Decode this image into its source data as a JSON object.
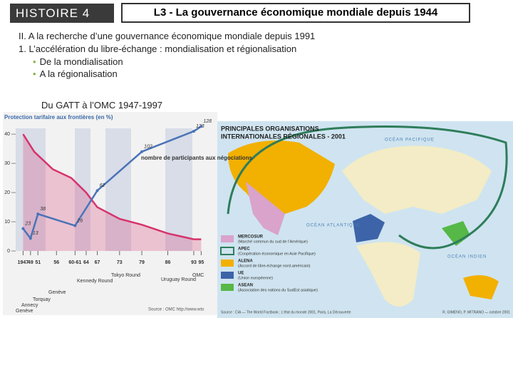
{
  "header": {
    "course": "HISTOIRE 4",
    "title": "L3 - La gouvernance économique mondiale depuis 1944"
  },
  "body": {
    "lines": [
      "II. A la recherche d’une gouvernance économique mondiale depuis 1991",
      "1. L’accélération du libre-échange : mondialisation et régionalisation"
    ],
    "bullets": [
      "De la mondialisation",
      "A la régionalisation"
    ],
    "caption": "Du GATT à l’OMC 1947-1997"
  },
  "chart_data": {
    "type": "line",
    "title": "Protection tarifaire aux frontières (en %)",
    "xlim": [
      1945,
      1998
    ],
    "ylim": [
      0,
      42
    ],
    "yticks": [
      0,
      10,
      20,
      30,
      40
    ],
    "y2lim": [
      0,
      126
    ],
    "xticks": [
      1947,
      {
        "value": 1949,
        "label": "49"
      },
      {
        "value": 1951,
        "label": "51"
      },
      {
        "value": 1956,
        "label": "56"
      },
      {
        "value": 1961,
        "label": "60-61"
      },
      {
        "value": 1964,
        "label": "64"
      },
      {
        "value": 1967,
        "label": "67"
      },
      {
        "value": 1973,
        "label": "73"
      },
      {
        "value": 1979,
        "label": "79"
      },
      {
        "value": 1986,
        "label": "86"
      },
      {
        "value": 1993,
        "label": "93"
      },
      {
        "value": 1995,
        "label": "95"
      }
    ],
    "series": [
      {
        "color": "#d6336c",
        "x": [
          1947,
          1950,
          1955,
          1960,
          1964,
          1967,
          1973,
          1979,
          1986,
          1993,
          1995
        ],
        "values": [
          40,
          34,
          28,
          25,
          20,
          15,
          11,
          9,
          6,
          4,
          4
        ]
      },
      {
        "color": "#4a74b8",
        "axis": "y2",
        "x": [
          1947,
          1949,
          1951,
          1961,
          1967,
          1979,
          1993,
          1995
        ],
        "values": [
          23,
          13,
          38,
          26,
          62,
          102,
          123,
          128
        ]
      }
    ],
    "annotation": "nombre de participants aux négociations",
    "rounds": [
      "Genève",
      "Annecy",
      "Torquay",
      "Genève",
      "Kennedy Round",
      "Tokyo Round",
      "Uruguay Round",
      "OMC"
    ],
    "source": "Source : OMC http://www.wto"
  },
  "map": {
    "title": [
      "PRINCIPALES ORGANISATIONS",
      "INTERNATIONALES RÉGIONALES - 2001"
    ],
    "oceans": [
      "OCÉAN PACIFIQUE",
      "OCÉAN ATLANTIQUE",
      "OCÉAN INDIEN"
    ],
    "legend": [
      {
        "name": "MERCOSUR",
        "desc": "(Marché commun du sud de l’Amérique)",
        "color": "#d9a3cc"
      },
      {
        "name": "APEC",
        "desc": "(Coopération économique en Asie Pacifique)",
        "color": "#2f7d5a"
      },
      {
        "name": "ALENA",
        "desc": "(Accord de libre-échange nord-américain)",
        "color": "#f2b000"
      },
      {
        "name": "UE",
        "desc": "(Union européenne)",
        "color": "#3d64a8"
      },
      {
        "name": "ASEAN",
        "desc": "(Association des nations du SudEst asiatique)",
        "color": "#56b847"
      }
    ],
    "source": "Source : CIA — The World Factbook ; L’état du monde 2001, Paris, La Découverte",
    "credit": "R. GIMENO, P. MITRANO — octobre 2001"
  }
}
